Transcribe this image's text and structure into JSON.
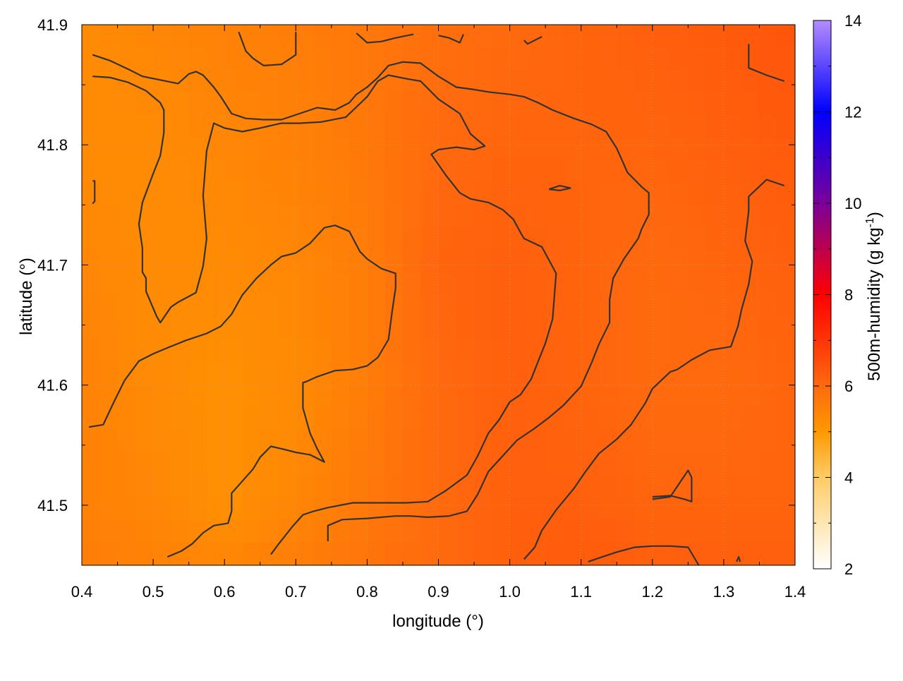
{
  "chart_data": {
    "type": "heatmap",
    "title": "",
    "xlabel": "longitude (°)",
    "ylabel": "latitude (°)",
    "colorbar_label": "500m-humidity (g kg",
    "colorbar_label_exp": "-1",
    "colorbar_label_close": ")",
    "xlim": [
      0.4,
      1.4
    ],
    "ylim": [
      41.45,
      41.9
    ],
    "clim": [
      2,
      14
    ],
    "x_ticks": [
      "0.4",
      "0.5",
      "0.6",
      "0.7",
      "0.8",
      "0.9",
      "1.0",
      "1.1",
      "1.2",
      "1.3",
      "1.4"
    ],
    "y_ticks": [
      "41.5",
      "41.6",
      "41.7",
      "41.8",
      "41.9"
    ],
    "colorbar_ticks": [
      "2",
      "4",
      "6",
      "8",
      "10",
      "12",
      "14"
    ],
    "grid": true,
    "colormap": [
      {
        "v": 2,
        "color": "#ffffff"
      },
      {
        "v": 4,
        "color": "#ffcc66"
      },
      {
        "v": 5,
        "color": "#ff9900"
      },
      {
        "v": 6,
        "color": "#ff6a0e"
      },
      {
        "v": 8,
        "color": "#ff0000"
      },
      {
        "v": 10,
        "color": "#7a0099"
      },
      {
        "v": 12,
        "color": "#0000ff"
      },
      {
        "v": 14,
        "color": "#b48cff"
      }
    ],
    "field": {
      "x": [
        0.4,
        0.5,
        0.6,
        0.7,
        0.8,
        0.9,
        1.0,
        1.1,
        1.2,
        1.3,
        1.4
      ],
      "y": [
        41.9,
        41.8,
        41.7,
        41.6,
        41.5,
        41.45
      ],
      "values": [
        [
          5.3,
          5.4,
          5.5,
          5.6,
          5.7,
          5.9,
          6.0,
          6.1,
          6.2,
          6.3,
          6.4
        ],
        [
          5.3,
          5.3,
          5.4,
          5.5,
          5.7,
          6.0,
          6.1,
          6.1,
          6.1,
          6.2,
          6.3
        ],
        [
          5.4,
          5.3,
          5.3,
          5.4,
          5.6,
          6.1,
          6.2,
          6.1,
          6.0,
          6.1,
          6.2
        ],
        [
          5.5,
          5.3,
          5.2,
          5.3,
          5.6,
          6.0,
          6.2,
          6.1,
          6.0,
          6.0,
          6.1
        ],
        [
          5.5,
          5.4,
          5.2,
          5.4,
          5.7,
          6.0,
          6.2,
          6.2,
          6.1,
          6.1,
          6.1
        ],
        [
          5.6,
          5.5,
          5.4,
          5.6,
          5.8,
          6.0,
          6.2,
          6.3,
          6.2,
          6.2,
          6.2
        ]
      ]
    },
    "contours": [
      [
        [
          0.415,
          41.875
        ],
        [
          0.44,
          41.87
        ],
        [
          0.465,
          41.863
        ],
        [
          0.485,
          41.857
        ],
        [
          0.51,
          41.854
        ],
        [
          0.535,
          41.851
        ],
        [
          0.55,
          41.859
        ],
        [
          0.56,
          41.861
        ],
        [
          0.57,
          41.858
        ],
        [
          0.585,
          41.848
        ],
        [
          0.595,
          41.84
        ],
        [
          0.61,
          41.826
        ],
        [
          0.63,
          41.822
        ],
        [
          0.655,
          41.821
        ],
        [
          0.68,
          41.821
        ],
        [
          0.705,
          41.826
        ],
        [
          0.73,
          41.831
        ],
        [
          0.755,
          41.829
        ],
        [
          0.775,
          41.835
        ],
        [
          0.785,
          41.842
        ],
        [
          0.8,
          41.848
        ],
        [
          0.815,
          41.856
        ],
        [
          0.83,
          41.866
        ],
        [
          0.85,
          41.869
        ],
        [
          0.875,
          41.868
        ],
        [
          0.9,
          41.857
        ],
        [
          0.925,
          41.848
        ],
        [
          0.95,
          41.846
        ],
        [
          0.97,
          41.844
        ],
        [
          1.0,
          41.842
        ],
        [
          1.02,
          41.84
        ],
        [
          1.04,
          41.835
        ],
        [
          1.06,
          41.829
        ],
        [
          1.09,
          41.822
        ],
        [
          1.115,
          41.817
        ],
        [
          1.135,
          41.811
        ],
        [
          1.15,
          41.797
        ],
        [
          1.165,
          41.777
        ],
        [
          1.185,
          41.765
        ],
        [
          1.195,
          41.76
        ],
        [
          1.195,
          41.742
        ],
        [
          1.185,
          41.73
        ],
        [
          1.18,
          41.722
        ],
        [
          1.16,
          41.705
        ],
        [
          1.145,
          41.689
        ],
        [
          1.14,
          41.671
        ],
        [
          1.14,
          41.652
        ],
        [
          1.125,
          41.634
        ],
        [
          1.115,
          41.619
        ],
        [
          1.1,
          41.599
        ],
        [
          1.075,
          41.583
        ],
        [
          1.055,
          41.573
        ],
        [
          1.035,
          41.564
        ],
        [
          1.01,
          41.554
        ],
        [
          0.99,
          41.541
        ],
        [
          0.97,
          41.528
        ],
        [
          0.955,
          41.509
        ],
        [
          0.94,
          41.495
        ],
        [
          0.915,
          41.491
        ],
        [
          0.885,
          41.49
        ],
        [
          0.86,
          41.491
        ],
        [
          0.84,
          41.491
        ],
        [
          0.8,
          41.489
        ],
        [
          0.765,
          41.488
        ],
        [
          0.745,
          41.483
        ],
        [
          0.745,
          41.47
        ]
      ],
      [
        [
          0.415,
          41.857
        ],
        [
          0.44,
          41.856
        ],
        [
          0.465,
          41.852
        ],
        [
          0.49,
          41.845
        ],
        [
          0.51,
          41.835
        ],
        [
          0.515,
          41.829
        ],
        [
          0.515,
          41.81
        ],
        [
          0.51,
          41.791
        ],
        [
          0.5,
          41.776
        ],
        [
          0.485,
          41.752
        ],
        [
          0.48,
          41.734
        ],
        [
          0.485,
          41.714
        ],
        [
          0.485,
          41.694
        ],
        [
          0.49,
          41.689
        ],
        [
          0.49,
          41.678
        ],
        [
          0.505,
          41.657
        ],
        [
          0.51,
          41.652
        ],
        [
          0.525,
          41.665
        ],
        [
          0.535,
          41.669
        ],
        [
          0.56,
          41.677
        ],
        [
          0.57,
          41.699
        ],
        [
          0.575,
          41.722
        ],
        [
          0.57,
          41.758
        ],
        [
          0.575,
          41.795
        ],
        [
          0.585,
          41.818
        ],
        [
          0.6,
          41.814
        ],
        [
          0.625,
          41.811
        ],
        [
          0.65,
          41.814
        ],
        [
          0.68,
          41.818
        ],
        [
          0.705,
          41.818
        ],
        [
          0.735,
          41.819
        ],
        [
          0.77,
          41.823
        ],
        [
          0.8,
          41.84
        ],
        [
          0.815,
          41.853
        ],
        [
          0.83,
          41.858
        ],
        [
          0.855,
          41.855
        ],
        [
          0.875,
          41.853
        ],
        [
          0.9,
          41.838
        ],
        [
          0.93,
          41.826
        ],
        [
          0.945,
          41.809
        ],
        [
          0.965,
          41.799
        ],
        [
          0.95,
          41.796
        ],
        [
          0.925,
          41.798
        ],
        [
          0.9,
          41.796
        ],
        [
          0.89,
          41.792
        ],
        [
          0.91,
          41.775
        ],
        [
          0.93,
          41.76
        ],
        [
          0.945,
          41.755
        ],
        [
          0.97,
          41.752
        ],
        [
          0.99,
          41.746
        ],
        [
          1.005,
          41.738
        ],
        [
          1.015,
          41.727
        ],
        [
          1.02,
          41.722
        ],
        [
          1.045,
          41.715
        ],
        [
          1.055,
          41.704
        ],
        [
          1.065,
          41.693
        ],
        [
          1.06,
          41.655
        ],
        [
          1.05,
          41.635
        ],
        [
          1.04,
          41.62
        ],
        [
          1.03,
          41.605
        ],
        [
          1.015,
          41.592
        ],
        [
          1.0,
          41.586
        ],
        [
          0.985,
          41.571
        ],
        [
          0.97,
          41.56
        ],
        [
          0.955,
          41.541
        ],
        [
          0.94,
          41.525
        ],
        [
          0.91,
          41.512
        ],
        [
          0.885,
          41.503
        ],
        [
          0.855,
          41.502
        ],
        [
          0.82,
          41.502
        ],
        [
          0.78,
          41.502
        ],
        [
          0.745,
          41.498
        ],
        [
          0.725,
          41.495
        ],
        [
          0.71,
          41.492
        ],
        [
          0.695,
          41.482
        ],
        [
          0.675,
          41.467
        ],
        [
          0.665,
          41.459
        ]
      ],
      [
        [
          0.41,
          41.565
        ],
        [
          0.43,
          41.567
        ],
        [
          0.445,
          41.586
        ],
        [
          0.46,
          41.604
        ],
        [
          0.48,
          41.62
        ],
        [
          0.5,
          41.626
        ],
        [
          0.52,
          41.631
        ],
        [
          0.545,
          41.637
        ],
        [
          0.575,
          41.643
        ],
        [
          0.595,
          41.649
        ],
        [
          0.61,
          41.659
        ],
        [
          0.625,
          41.675
        ],
        [
          0.645,
          41.689
        ],
        [
          0.665,
          41.7
        ],
        [
          0.68,
          41.707
        ],
        [
          0.7,
          41.71
        ],
        [
          0.72,
          41.718
        ],
        [
          0.74,
          41.731
        ],
        [
          0.755,
          41.733
        ],
        [
          0.775,
          41.728
        ],
        [
          0.79,
          41.711
        ],
        [
          0.8,
          41.705
        ],
        [
          0.82,
          41.697
        ],
        [
          0.84,
          41.693
        ],
        [
          0.84,
          41.681
        ],
        [
          0.835,
          41.661
        ],
        [
          0.83,
          41.638
        ],
        [
          0.815,
          41.623
        ],
        [
          0.8,
          41.616
        ],
        [
          0.78,
          41.613
        ],
        [
          0.755,
          41.612
        ],
        [
          0.73,
          41.607
        ],
        [
          0.715,
          41.603
        ],
        [
          0.71,
          41.602
        ],
        [
          0.71,
          41.581
        ],
        [
          0.72,
          41.56
        ],
        [
          0.73,
          41.547
        ],
        [
          0.74,
          41.536
        ],
        [
          0.72,
          41.542
        ],
        [
          0.7,
          41.544
        ],
        [
          0.68,
          41.547
        ],
        [
          0.665,
          41.549
        ],
        [
          0.65,
          41.54
        ],
        [
          0.64,
          41.53
        ],
        [
          0.625,
          41.52
        ],
        [
          0.61,
          41.51
        ],
        [
          0.61,
          41.495
        ],
        [
          0.605,
          41.485
        ],
        [
          0.585,
          41.483
        ],
        [
          0.57,
          41.477
        ],
        [
          0.555,
          41.468
        ],
        [
          0.54,
          41.462
        ],
        [
          0.52,
          41.457
        ]
      ],
      [
        [
          0.62,
          41.894
        ],
        [
          0.63,
          41.878
        ],
        [
          0.64,
          41.872
        ],
        [
          0.655,
          41.866
        ],
        [
          0.68,
          41.867
        ],
        [
          0.7,
          41.875
        ],
        [
          0.7,
          41.894
        ]
      ],
      [
        [
          0.785,
          41.893
        ],
        [
          0.8,
          41.885
        ],
        [
          0.82,
          41.886
        ],
        [
          0.84,
          41.889
        ],
        [
          0.865,
          41.892
        ]
      ],
      [
        [
          0.9,
          41.891
        ],
        [
          0.915,
          41.889
        ],
        [
          0.93,
          41.885
        ],
        [
          0.935,
          41.892
        ]
      ],
      [
        [
          1.02,
          41.887
        ],
        [
          1.025,
          41.884
        ],
        [
          1.045,
          41.89
        ]
      ],
      [
        [
          1.335,
          41.884
        ],
        [
          1.335,
          41.864
        ],
        [
          1.36,
          41.858
        ],
        [
          1.385,
          41.853
        ]
      ],
      [
        [
          0.415,
          41.77
        ],
        [
          0.418,
          41.77
        ],
        [
          0.418,
          41.753
        ],
        [
          0.415,
          41.751
        ]
      ],
      [
        [
          1.055,
          41.763
        ],
        [
          1.07,
          41.766
        ],
        [
          1.085,
          41.764
        ],
        [
          1.07,
          41.762
        ],
        [
          1.055,
          41.763
        ]
      ],
      [
        [
          1.385,
          41.766
        ],
        [
          1.36,
          41.771
        ],
        [
          1.335,
          41.757
        ],
        [
          1.335,
          41.745
        ],
        [
          1.33,
          41.72
        ],
        [
          1.34,
          41.703
        ],
        [
          1.335,
          41.684
        ],
        [
          1.325,
          41.663
        ],
        [
          1.32,
          41.649
        ],
        [
          1.31,
          41.632
        ],
        [
          1.28,
          41.629
        ],
        [
          1.255,
          41.621
        ],
        [
          1.235,
          41.613
        ],
        [
          1.225,
          41.611
        ],
        [
          1.2,
          41.597
        ],
        [
          1.19,
          41.585
        ],
        [
          1.17,
          41.567
        ],
        [
          1.15,
          41.555
        ],
        [
          1.125,
          41.543
        ],
        [
          1.105,
          41.527
        ],
        [
          1.09,
          41.514
        ],
        [
          1.065,
          41.496
        ],
        [
          1.045,
          41.479
        ],
        [
          1.035,
          41.465
        ],
        [
          1.02,
          41.455
        ]
      ],
      [
        [
          1.2,
          41.507
        ],
        [
          1.225,
          41.508
        ],
        [
          1.245,
          41.505
        ],
        [
          1.255,
          41.503
        ],
        [
          1.255,
          41.523
        ],
        [
          1.25,
          41.529
        ],
        [
          1.225,
          41.507
        ],
        [
          1.2,
          41.505
        ]
      ],
      [
        [
          1.11,
          41.453
        ],
        [
          1.13,
          41.457
        ],
        [
          1.15,
          41.461
        ],
        [
          1.175,
          41.465
        ],
        [
          1.2,
          41.466
        ],
        [
          1.225,
          41.466
        ],
        [
          1.25,
          41.465
        ],
        [
          1.265,
          41.45
        ]
      ],
      [
        [
          1.318,
          41.453
        ],
        [
          1.321,
          41.457
        ],
        [
          1.323,
          41.453
        ]
      ]
    ]
  }
}
